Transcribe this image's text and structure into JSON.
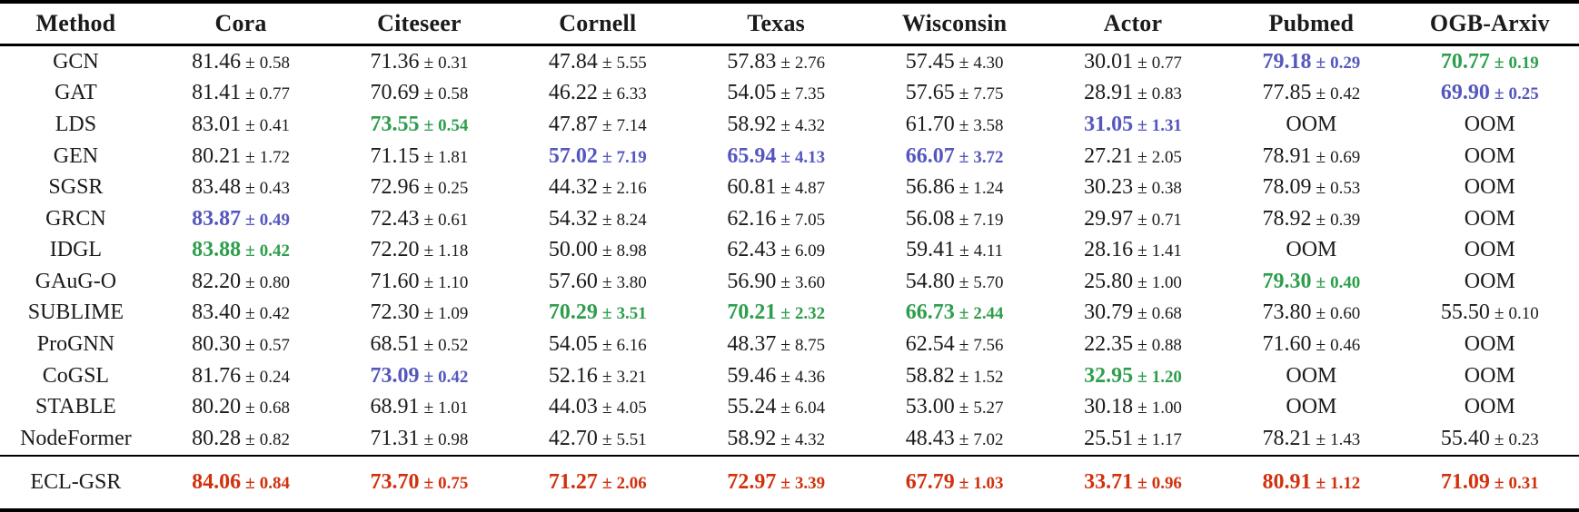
{
  "table": {
    "pm_symbol": "±",
    "oom_label": "OOM",
    "highlight_colors": {
      "black": "#1b1b1b",
      "green": "#2E9E4C",
      "blue": "#5557BD",
      "red": "#D2310E"
    },
    "columns": [
      "Method",
      "Cora",
      "Citeseer",
      "Cornell",
      "Texas",
      "Wisconsin",
      "Actor",
      "Pubmed",
      "OGB-Arxiv"
    ],
    "rows": [
      {
        "method": "GCN",
        "cells": [
          {
            "mean": "81.46",
            "std": "0.58"
          },
          {
            "mean": "71.36",
            "std": "0.31"
          },
          {
            "mean": "47.84",
            "std": "5.55"
          },
          {
            "mean": "57.83",
            "std": "2.76"
          },
          {
            "mean": "57.45",
            "std": "4.30"
          },
          {
            "mean": "30.01",
            "std": "0.77"
          },
          {
            "mean": "79.18",
            "std": "0.29",
            "color": "blue"
          },
          {
            "mean": "70.77",
            "std": "0.19",
            "color": "green"
          }
        ]
      },
      {
        "method": "GAT",
        "cells": [
          {
            "mean": "81.41",
            "std": "0.77"
          },
          {
            "mean": "70.69",
            "std": "0.58"
          },
          {
            "mean": "46.22",
            "std": "6.33"
          },
          {
            "mean": "54.05",
            "std": "7.35"
          },
          {
            "mean": "57.65",
            "std": "7.75"
          },
          {
            "mean": "28.91",
            "std": "0.83"
          },
          {
            "mean": "77.85",
            "std": "0.42"
          },
          {
            "mean": "69.90",
            "std": "0.25",
            "color": "blue"
          }
        ]
      },
      {
        "method": "LDS",
        "cells": [
          {
            "mean": "83.01",
            "std": "0.41"
          },
          {
            "mean": "73.55",
            "std": "0.54",
            "color": "green"
          },
          {
            "mean": "47.87",
            "std": "7.14"
          },
          {
            "mean": "58.92",
            "std": "4.32"
          },
          {
            "mean": "61.70",
            "std": "3.58"
          },
          {
            "mean": "31.05",
            "std": "1.31",
            "color": "blue"
          },
          {
            "oom": true
          },
          {
            "oom": true
          }
        ]
      },
      {
        "method": "GEN",
        "cells": [
          {
            "mean": "80.21",
            "std": "1.72"
          },
          {
            "mean": "71.15",
            "std": "1.81"
          },
          {
            "mean": "57.02",
            "std": "7.19",
            "color": "blue"
          },
          {
            "mean": "65.94",
            "std": "4.13",
            "color": "blue"
          },
          {
            "mean": "66.07",
            "std": "3.72",
            "color": "blue"
          },
          {
            "mean": "27.21",
            "std": "2.05"
          },
          {
            "mean": "78.91",
            "std": "0.69"
          },
          {
            "oom": true
          }
        ]
      },
      {
        "method": "SGSR",
        "cells": [
          {
            "mean": "83.48",
            "std": "0.43"
          },
          {
            "mean": "72.96",
            "std": "0.25"
          },
          {
            "mean": "44.32",
            "std": "2.16"
          },
          {
            "mean": "60.81",
            "std": "4.87"
          },
          {
            "mean": "56.86",
            "std": "1.24"
          },
          {
            "mean": "30.23",
            "std": "0.38"
          },
          {
            "mean": "78.09",
            "std": "0.53"
          },
          {
            "oom": true
          }
        ]
      },
      {
        "method": "GRCN",
        "cells": [
          {
            "mean": "83.87",
            "std": "0.49",
            "color": "blue"
          },
          {
            "mean": "72.43",
            "std": "0.61"
          },
          {
            "mean": "54.32",
            "std": "8.24"
          },
          {
            "mean": "62.16",
            "std": "7.05"
          },
          {
            "mean": "56.08",
            "std": "7.19"
          },
          {
            "mean": "29.97",
            "std": "0.71"
          },
          {
            "mean": "78.92",
            "std": "0.39"
          },
          {
            "oom": true
          }
        ]
      },
      {
        "method": "IDGL",
        "cells": [
          {
            "mean": "83.88",
            "std": "0.42",
            "color": "green"
          },
          {
            "mean": "72.20",
            "std": "1.18"
          },
          {
            "mean": "50.00",
            "std": "8.98"
          },
          {
            "mean": "62.43",
            "std": "6.09"
          },
          {
            "mean": "59.41",
            "std": "4.11"
          },
          {
            "mean": "28.16",
            "std": "1.41"
          },
          {
            "oom": true
          },
          {
            "oom": true
          }
        ]
      },
      {
        "method": "GAuG-O",
        "cells": [
          {
            "mean": "82.20",
            "std": "0.80"
          },
          {
            "mean": "71.60",
            "std": "1.10"
          },
          {
            "mean": "57.60",
            "std": "3.80"
          },
          {
            "mean": "56.90",
            "std": "3.60"
          },
          {
            "mean": "54.80",
            "std": "5.70"
          },
          {
            "mean": "25.80",
            "std": "1.00"
          },
          {
            "mean": "79.30",
            "std": "0.40",
            "color": "green"
          },
          {
            "oom": true
          }
        ]
      },
      {
        "method": "SUBLIME",
        "cells": [
          {
            "mean": "83.40",
            "std": "0.42"
          },
          {
            "mean": "72.30",
            "std": "1.09"
          },
          {
            "mean": "70.29",
            "std": "3.51",
            "color": "green"
          },
          {
            "mean": "70.21",
            "std": "2.32",
            "color": "green"
          },
          {
            "mean": "66.73",
            "std": "2.44",
            "color": "green"
          },
          {
            "mean": "30.79",
            "std": "0.68"
          },
          {
            "mean": "73.80",
            "std": "0.60"
          },
          {
            "mean": "55.50",
            "std": "0.10"
          }
        ]
      },
      {
        "method": "ProGNN",
        "cells": [
          {
            "mean": "80.30",
            "std": "0.57"
          },
          {
            "mean": "68.51",
            "std": "0.52"
          },
          {
            "mean": "54.05",
            "std": "6.16"
          },
          {
            "mean": "48.37",
            "std": "8.75"
          },
          {
            "mean": "62.54",
            "std": "7.56"
          },
          {
            "mean": "22.35",
            "std": "0.88"
          },
          {
            "mean": "71.60",
            "std": "0.46"
          },
          {
            "oom": true
          }
        ]
      },
      {
        "method": "CoGSL",
        "cells": [
          {
            "mean": "81.76",
            "std": "0.24"
          },
          {
            "mean": "73.09",
            "std": "0.42",
            "color": "blue"
          },
          {
            "mean": "52.16",
            "std": "3.21"
          },
          {
            "mean": "59.46",
            "std": "4.36"
          },
          {
            "mean": "58.82",
            "std": "1.52"
          },
          {
            "mean": "32.95",
            "std": "1.20",
            "color": "green"
          },
          {
            "oom": true
          },
          {
            "oom": true
          }
        ]
      },
      {
        "method": "STABLE",
        "cells": [
          {
            "mean": "80.20",
            "std": "0.68"
          },
          {
            "mean": "68.91",
            "std": "1.01"
          },
          {
            "mean": "44.03",
            "std": "4.05"
          },
          {
            "mean": "55.24",
            "std": "6.04"
          },
          {
            "mean": "53.00",
            "std": "5.27"
          },
          {
            "mean": "30.18",
            "std": "1.00"
          },
          {
            "oom": true
          },
          {
            "oom": true
          }
        ]
      },
      {
        "method": "NodeFormer",
        "cells": [
          {
            "mean": "80.28",
            "std": "0.82"
          },
          {
            "mean": "71.31",
            "std": "0.98"
          },
          {
            "mean": "42.70",
            "std": "5.51"
          },
          {
            "mean": "58.92",
            "std": "4.32"
          },
          {
            "mean": "48.43",
            "std": "7.02"
          },
          {
            "mean": "25.51",
            "std": "1.17"
          },
          {
            "mean": "78.21",
            "std": "1.43"
          },
          {
            "mean": "55.40",
            "std": "0.23"
          }
        ]
      },
      {
        "method": "ECL-GSR",
        "ours": true,
        "cells": [
          {
            "mean": "84.06",
            "std": "0.84",
            "color": "red"
          },
          {
            "mean": "73.70",
            "std": "0.75",
            "color": "red"
          },
          {
            "mean": "71.27",
            "std": "2.06",
            "color": "red"
          },
          {
            "mean": "72.97",
            "std": "3.39",
            "color": "red"
          },
          {
            "mean": "67.79",
            "std": "1.03",
            "color": "red"
          },
          {
            "mean": "33.71",
            "std": "0.96",
            "color": "red"
          },
          {
            "mean": "80.91",
            "std": "1.12",
            "color": "red"
          },
          {
            "mean": "71.09",
            "std": "0.31",
            "color": "red"
          }
        ]
      }
    ]
  }
}
